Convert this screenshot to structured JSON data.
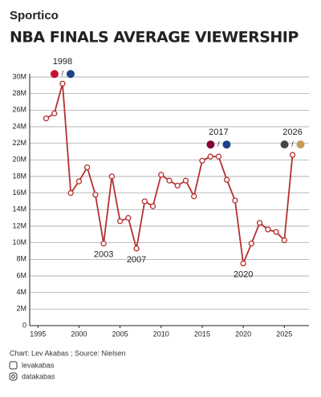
{
  "chart_data": {
    "type": "line",
    "brand": "Sportico",
    "title": "NBA FINALS AVERAGE VIEWERSHIP",
    "x": [
      1996,
      1997,
      1998,
      1999,
      2000,
      2001,
      2002,
      2003,
      2004,
      2005,
      2006,
      2007,
      2008,
      2009,
      2010,
      2011,
      2012,
      2013,
      2014,
      2015,
      2016,
      2017,
      2018,
      2019,
      2020,
      2021,
      2022,
      2023,
      2024,
      2025,
      2026
    ],
    "values": [
      25.0,
      25.6,
      29.2,
      16.0,
      17.4,
      19.1,
      15.8,
      9.9,
      18.0,
      12.6,
      13.0,
      9.3,
      15.0,
      14.4,
      18.2,
      17.5,
      16.9,
      17.5,
      15.6,
      19.9,
      20.4,
      20.4,
      17.6,
      15.1,
      7.5,
      9.9,
      12.4,
      11.6,
      11.3,
      10.3,
      20.6
    ],
    "color": "#b5302f",
    "xlim": [
      1994,
      2028
    ],
    "xticks": [
      1995,
      2000,
      2005,
      2010,
      2015,
      2020,
      2025
    ],
    "ylim": [
      0,
      30
    ],
    "yticks": [
      0,
      {
        "value": 2,
        "label": "2M"
      },
      {
        "value": 4,
        "label": "4M"
      },
      {
        "value": 6,
        "label": "6M"
      },
      {
        "value": 8,
        "label": "8M"
      },
      {
        "value": 10,
        "label": "10M"
      },
      {
        "value": 12,
        "label": "12M"
      },
      {
        "value": 14,
        "label": "14M"
      },
      {
        "value": 16,
        "label": "16M"
      },
      {
        "value": 18,
        "label": "18M"
      },
      {
        "value": 20,
        "label": "20M"
      },
      {
        "value": 22,
        "label": "22M"
      },
      {
        "value": 24,
        "label": "24M"
      },
      {
        "value": 26,
        "label": "26M"
      },
      {
        "value": 28,
        "label": "28M"
      },
      {
        "value": 30,
        "label": "30M"
      }
    ],
    "grid": true,
    "annotations": [
      "1998",
      "2003",
      "2007",
      "2017",
      "2020",
      "2026"
    ],
    "logo_separator": "/",
    "source": "Chart: Lev Akabas ; Source: Nielsen",
    "handles": [
      "levakabas",
      "datakabas"
    ]
  }
}
